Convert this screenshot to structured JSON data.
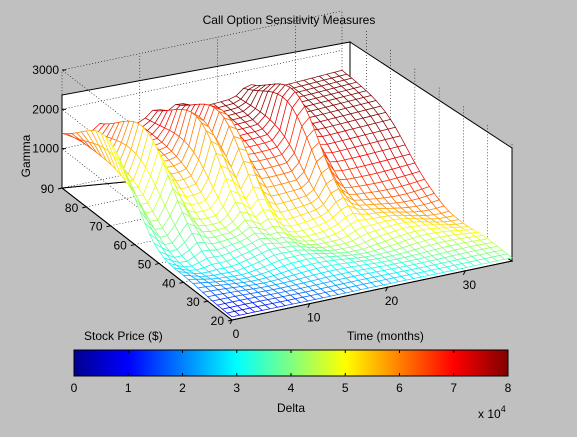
{
  "chart_data": {
    "type": "surface",
    "title": "Call Option Sensitivity Measures",
    "axes": {
      "x": {
        "label": "Time (months)",
        "ticks": [
          0,
          10,
          20,
          30
        ],
        "range": [
          0,
          36
        ]
      },
      "y": {
        "label": "Stock Price ($)",
        "ticks": [
          20,
          30,
          40,
          50,
          60,
          70,
          80,
          90
        ],
        "range": [
          20,
          90
        ]
      },
      "z": {
        "label": "Gamma",
        "ticks": [
          1000,
          2000,
          3000
        ],
        "range": [
          0,
          3000
        ]
      }
    },
    "grid": true,
    "colormap": "jet",
    "colorbar": {
      "label": "Delta",
      "ticks": [
        0,
        1,
        2,
        3,
        4,
        5,
        6,
        7,
        8
      ],
      "range": [
        0,
        8
      ],
      "exponent_label": "x 10",
      "exponent": "4",
      "colors": [
        "#00008f",
        "#0000ff",
        "#0080ff",
        "#00ffff",
        "#80ff80",
        "#ffff00",
        "#ff8000",
        "#ff0000",
        "#800000"
      ]
    },
    "surface": {
      "grid_size": [
        38,
        36
      ],
      "peak_times_months": [
        0,
        5,
        12,
        15,
        24
      ],
      "peak_gamma_approx": 2700,
      "plateau_gamma_approx": 1500,
      "floor_gamma_approx": 80
    }
  }
}
